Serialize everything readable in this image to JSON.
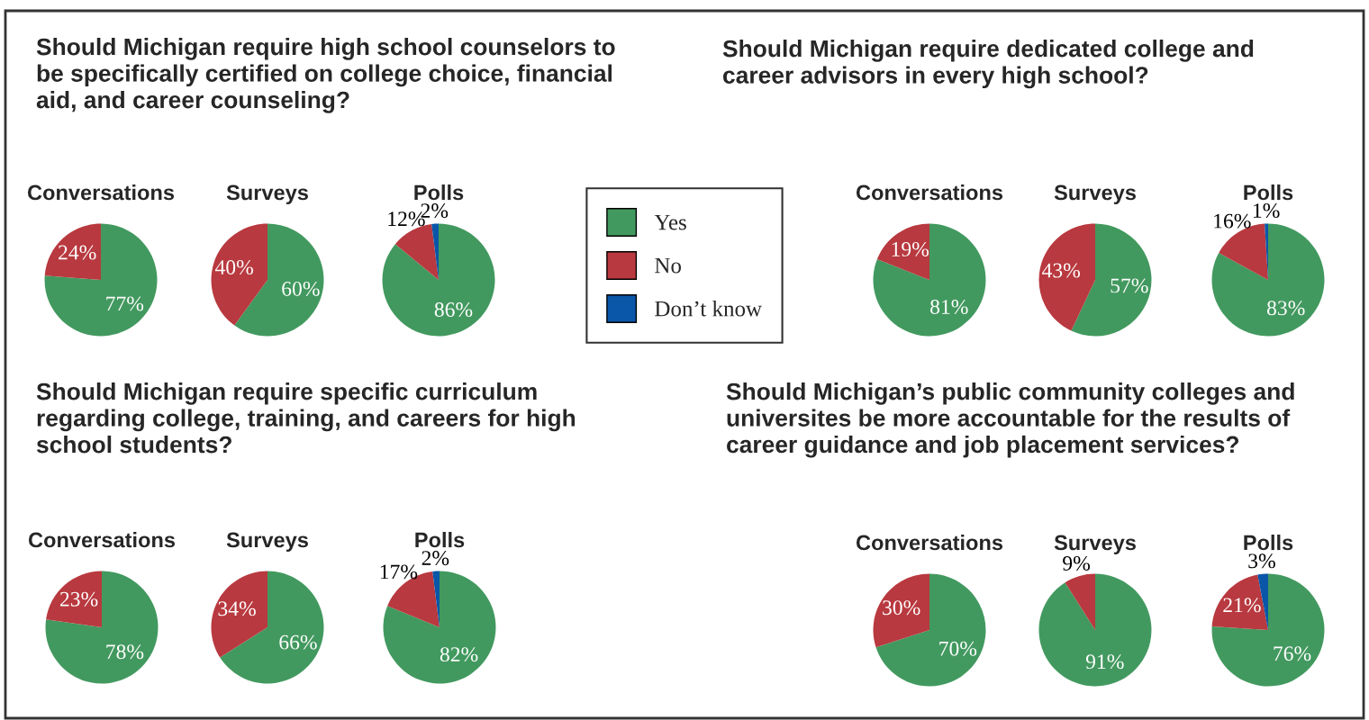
{
  "chart_data": [
    {
      "type": "pie",
      "title": "Conversations",
      "annotations": [
        "Should Michigan require high school counselors to be specifically certified on college choice, financial aid, and career counseling?"
      ],
      "categories": [
        null,
        null
      ],
      "values": [
        77,
        24
      ],
      "value_labels": [
        "77%",
        "24%"
      ],
      "colors": [
        "#42995f",
        "#b8393f"
      ]
    },
    {
      "type": "pie",
      "title": "Surveys",
      "categories": [
        null,
        null
      ],
      "values": [
        60,
        40
      ],
      "value_labels": [
        "60%",
        "40%"
      ],
      "colors": [
        "#42995f",
        "#b8393f"
      ]
    },
    {
      "type": "pie",
      "title": "Polls",
      "categories": [
        "Yes",
        "No",
        "Don’t know"
      ],
      "values": [
        86,
        12,
        2
      ],
      "value_labels": [
        "86%",
        "12%",
        "2%"
      ],
      "colors": [
        "#42995f",
        "#b8393f",
        "#0a56a8"
      ],
      "legend": "right"
    },
    {
      "type": "pie",
      "title": "Conversations",
      "annotations": [
        "Should Michigan require dedicated college and career advisors in every high school?"
      ],
      "categories": [
        null,
        null
      ],
      "values": [
        81,
        19
      ],
      "value_labels": [
        "81%",
        "19%"
      ],
      "colors": [
        "#42995f",
        "#b8393f"
      ]
    },
    {
      "type": "pie",
      "title": "Surveys",
      "categories": [
        null,
        null
      ],
      "values": [
        57,
        43
      ],
      "value_labels": [
        "57%",
        "43%"
      ],
      "colors": [
        "#42995f",
        "#b8393f"
      ]
    },
    {
      "type": "pie",
      "title": "Polls",
      "categories": [
        null,
        null,
        null
      ],
      "values": [
        83,
        16,
        1
      ],
      "value_labels": [
        "83%",
        "16%",
        "1%"
      ],
      "colors": [
        "#42995f",
        "#b8393f",
        "#0a56a8"
      ]
    },
    {
      "type": "pie",
      "title": "Conversations",
      "annotations": [
        "Should Michigan require specific curriculum regarding college, training, and careers for high school students?"
      ],
      "categories": [
        null,
        null
      ],
      "values": [
        78,
        23
      ],
      "value_labels": [
        "78%",
        "23%"
      ],
      "colors": [
        "#42995f",
        "#b8393f"
      ]
    },
    {
      "type": "pie",
      "title": "Surveys",
      "categories": [
        null,
        null
      ],
      "values": [
        66,
        34
      ],
      "value_labels": [
        "66%",
        "34%"
      ],
      "colors": [
        "#42995f",
        "#b8393f"
      ]
    },
    {
      "type": "pie",
      "title": "Polls",
      "categories": [
        null,
        null,
        null
      ],
      "values": [
        82,
        17,
        2
      ],
      "value_labels": [
        "82%",
        "17%",
        "2%"
      ],
      "colors": [
        "#42995f",
        "#b8393f",
        "#0a56a8"
      ]
    },
    {
      "type": "pie",
      "title": "Conversations",
      "annotations": [
        "Should Michigan’s public community colleges and universites be more accountable for the results of career guidance and job placement services?"
      ],
      "categories": [
        null,
        null
      ],
      "values": [
        70,
        30
      ],
      "value_labels": [
        "70%",
        "30%"
      ],
      "colors": [
        "#42995f",
        "#b8393f"
      ]
    },
    {
      "type": "pie",
      "title": "Surveys",
      "categories": [
        null,
        null
      ],
      "values": [
        91,
        9
      ],
      "value_labels": [
        "91%",
        "9%"
      ],
      "colors": [
        "#42995f",
        "#b8393f"
      ]
    },
    {
      "type": "pie",
      "title": "Polls",
      "categories": [
        null,
        null,
        null
      ],
      "values": [
        76,
        21,
        3
      ],
      "value_labels": [
        "76%",
        "21%",
        "3%"
      ],
      "colors": [
        "#42995f",
        "#b8393f",
        "#0a56a8"
      ]
    }
  ]
}
